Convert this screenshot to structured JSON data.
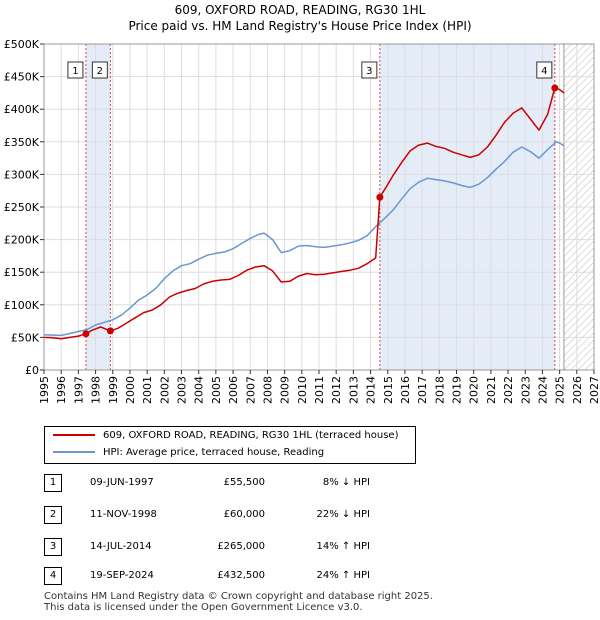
{
  "title": "609, OXFORD ROAD, READING, RG30 1HL",
  "subtitle": "Price paid vs. HM Land Registry's House Price Index (HPI)",
  "colors": {
    "property": "#cc0000",
    "hpi": "#6a97d0",
    "shade": "#e4ecf8",
    "future_hatch": "#bbbbbb",
    "vline": "#dd4444"
  },
  "chart_data": {
    "type": "line",
    "title": "609, OXFORD ROAD, READING, RG30 1HL",
    "subtitle": "Price paid vs. HM Land Registry's House Price Index (HPI)",
    "xlabel": "",
    "ylabel": "",
    "xlim": [
      1995,
      2027
    ],
    "ylim": [
      0,
      500000
    ],
    "x_ticks": [
      "1995",
      "1996",
      "1997",
      "1998",
      "1999",
      "2000",
      "2001",
      "2002",
      "2003",
      "2004",
      "2005",
      "2006",
      "2007",
      "2008",
      "2009",
      "2010",
      "2011",
      "2012",
      "2013",
      "2014",
      "2015",
      "2016",
      "2017",
      "2018",
      "2019",
      "2020",
      "2021",
      "2022",
      "2023",
      "2024",
      "2025",
      "2026",
      "2027"
    ],
    "y_ticks": [
      {
        "value": 0,
        "label": "£0"
      },
      {
        "value": 50000,
        "label": "£50K"
      },
      {
        "value": 100000,
        "label": "£100K"
      },
      {
        "value": 150000,
        "label": "£150K"
      },
      {
        "value": 200000,
        "label": "£200K"
      },
      {
        "value": 250000,
        "label": "£250K"
      },
      {
        "value": 300000,
        "label": "£300K"
      },
      {
        "value": 350000,
        "label": "£350K"
      },
      {
        "value": 400000,
        "label": "£400K"
      },
      {
        "value": 450000,
        "label": "£450K"
      },
      {
        "value": 500000,
        "label": "£500K"
      }
    ],
    "grid": true,
    "future_hatch_from": 2025.25,
    "series": [
      {
        "name": "609, OXFORD ROAD, READING, RG30 1HL (terraced house)",
        "color": "#cc0000",
        "points": [
          [
            1995.0,
            50000
          ],
          [
            1995.5,
            49500
          ],
          [
            1996.0,
            48000
          ],
          [
            1996.5,
            50000
          ],
          [
            1997.0,
            52000
          ],
          [
            1997.44,
            55500
          ],
          [
            1997.8,
            61000
          ],
          [
            1998.3,
            66000
          ],
          [
            1998.86,
            60000
          ],
          [
            1999.3,
            64000
          ],
          [
            1999.8,
            72000
          ],
          [
            2000.3,
            80000
          ],
          [
            2000.8,
            88000
          ],
          [
            2001.3,
            92000
          ],
          [
            2001.8,
            100000
          ],
          [
            2002.3,
            112000
          ],
          [
            2002.8,
            118000
          ],
          [
            2003.3,
            122000
          ],
          [
            2003.8,
            125000
          ],
          [
            2004.3,
            132000
          ],
          [
            2004.8,
            136000
          ],
          [
            2005.3,
            138000
          ],
          [
            2005.8,
            139000
          ],
          [
            2006.3,
            145000
          ],
          [
            2006.8,
            153000
          ],
          [
            2007.3,
            158000
          ],
          [
            2007.8,
            160000
          ],
          [
            2008.3,
            152000
          ],
          [
            2008.8,
            135000
          ],
          [
            2009.3,
            136000
          ],
          [
            2009.8,
            144000
          ],
          [
            2010.3,
            148000
          ],
          [
            2010.8,
            146000
          ],
          [
            2011.3,
            147000
          ],
          [
            2011.8,
            149000
          ],
          [
            2012.3,
            151000
          ],
          [
            2012.8,
            153000
          ],
          [
            2013.3,
            156000
          ],
          [
            2013.8,
            163000
          ],
          [
            2014.3,
            172000
          ],
          [
            2014.54,
            265000
          ],
          [
            2014.9,
            280000
          ],
          [
            2015.3,
            298000
          ],
          [
            2015.8,
            318000
          ],
          [
            2016.3,
            336000
          ],
          [
            2016.8,
            345000
          ],
          [
            2017.3,
            348000
          ],
          [
            2017.8,
            343000
          ],
          [
            2018.3,
            340000
          ],
          [
            2018.8,
            334000
          ],
          [
            2019.3,
            330000
          ],
          [
            2019.8,
            326000
          ],
          [
            2020.3,
            330000
          ],
          [
            2020.8,
            342000
          ],
          [
            2021.3,
            360000
          ],
          [
            2021.8,
            380000
          ],
          [
            2022.3,
            394000
          ],
          [
            2022.8,
            402000
          ],
          [
            2023.3,
            385000
          ],
          [
            2023.8,
            368000
          ],
          [
            2024.3,
            392000
          ],
          [
            2024.72,
            432500
          ],
          [
            2025.0,
            430000
          ],
          [
            2025.25,
            425000
          ]
        ]
      },
      {
        "name": "HPI: Average price, terraced house, Reading",
        "color": "#6a97d0",
        "points": [
          [
            1995.0,
            54000
          ],
          [
            1995.5,
            53500
          ],
          [
            1996.0,
            53000
          ],
          [
            1996.5,
            56000
          ],
          [
            1997.0,
            59000
          ],
          [
            1997.5,
            62000
          ],
          [
            1998.0,
            69000
          ],
          [
            1998.5,
            73000
          ],
          [
            1999.0,
            77000
          ],
          [
            1999.5,
            84000
          ],
          [
            2000.0,
            95000
          ],
          [
            2000.5,
            107000
          ],
          [
            2001.0,
            115000
          ],
          [
            2001.5,
            125000
          ],
          [
            2002.0,
            140000
          ],
          [
            2002.5,
            152000
          ],
          [
            2003.0,
            160000
          ],
          [
            2003.5,
            163000
          ],
          [
            2004.0,
            170000
          ],
          [
            2004.5,
            176000
          ],
          [
            2005.0,
            179000
          ],
          [
            2005.5,
            181000
          ],
          [
            2006.0,
            186000
          ],
          [
            2006.5,
            194000
          ],
          [
            2007.0,
            202000
          ],
          [
            2007.5,
            208000
          ],
          [
            2007.8,
            210000
          ],
          [
            2008.3,
            200000
          ],
          [
            2008.8,
            180000
          ],
          [
            2009.3,
            183000
          ],
          [
            2009.8,
            190000
          ],
          [
            2010.3,
            191000
          ],
          [
            2010.8,
            189000
          ],
          [
            2011.3,
            188000
          ],
          [
            2011.8,
            190000
          ],
          [
            2012.3,
            192000
          ],
          [
            2012.8,
            195000
          ],
          [
            2013.3,
            199000
          ],
          [
            2013.8,
            206000
          ],
          [
            2014.3,
            220000
          ],
          [
            2014.8,
            232000
          ],
          [
            2015.3,
            245000
          ],
          [
            2015.8,
            262000
          ],
          [
            2016.3,
            278000
          ],
          [
            2016.8,
            288000
          ],
          [
            2017.3,
            294000
          ],
          [
            2017.8,
            292000
          ],
          [
            2018.3,
            290000
          ],
          [
            2018.8,
            287000
          ],
          [
            2019.3,
            283000
          ],
          [
            2019.8,
            280000
          ],
          [
            2020.3,
            285000
          ],
          [
            2020.8,
            295000
          ],
          [
            2021.3,
            308000
          ],
          [
            2021.8,
            320000
          ],
          [
            2022.3,
            334000
          ],
          [
            2022.8,
            342000
          ],
          [
            2023.3,
            335000
          ],
          [
            2023.8,
            325000
          ],
          [
            2024.3,
            338000
          ],
          [
            2024.8,
            350000
          ],
          [
            2025.0,
            348000
          ],
          [
            2025.25,
            344000
          ]
        ]
      }
    ],
    "transactions": [
      {
        "num": "1",
        "x": 1997.44,
        "value": 55500
      },
      {
        "num": "2",
        "x": 1998.86,
        "value": 60000
      },
      {
        "num": "3",
        "x": 2014.54,
        "value": 265000
      },
      {
        "num": "4",
        "x": 2024.72,
        "value": 432500
      }
    ],
    "shaded_ranges": [
      [
        1997.44,
        1998.86
      ],
      [
        2014.54,
        2024.72
      ]
    ]
  },
  "legend": {
    "property_label": "609, OXFORD ROAD, READING, RG30 1HL (terraced house)",
    "hpi_label": "HPI: Average price, terraced house, Reading"
  },
  "table": [
    {
      "num": "1",
      "date": "09-JUN-1997",
      "price": "£55,500",
      "hpi": "8% ↓ HPI"
    },
    {
      "num": "2",
      "date": "11-NOV-1998",
      "price": "£60,000",
      "hpi": "22% ↓ HPI"
    },
    {
      "num": "3",
      "date": "14-JUL-2014",
      "price": "£265,000",
      "hpi": "14% ↑ HPI"
    },
    {
      "num": "4",
      "date": "19-SEP-2024",
      "price": "£432,500",
      "hpi": "24% ↑ HPI"
    }
  ],
  "footer": {
    "line1": "Contains HM Land Registry data © Crown copyright and database right 2025.",
    "line2": "This data is licensed under the Open Government Licence v3.0."
  }
}
